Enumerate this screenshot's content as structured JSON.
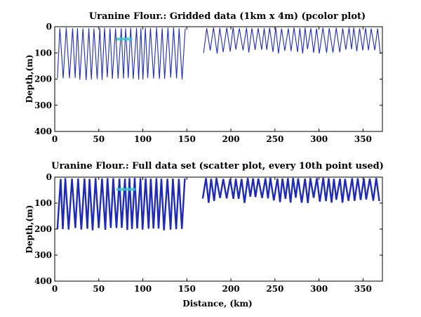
{
  "chart_data": [
    {
      "type": "pcolor",
      "title": "Uranine Flour.: Gridded data (1km x 4m) (pcolor plot)",
      "xlabel": "",
      "ylabel": "Depth,(m)",
      "xlim": [
        0,
        372
      ],
      "ylim": [
        0,
        400
      ],
      "y_reversed": true,
      "grid": false,
      "xticks": [
        "0",
        "50",
        "100",
        "150",
        "200",
        "250",
        "300",
        "350"
      ],
      "yticks": [
        "0",
        "100",
        "200",
        "300",
        "400"
      ],
      "profile_color": "#1f2bb5",
      "highlight_color": "#36c7c7",
      "profile_segments": [
        {
          "x_start": 3,
          "x_end": 149,
          "max_depth": 205
        },
        {
          "x_start": 169,
          "x_end": 370,
          "max_depth": 105
        }
      ],
      "highlights": [
        {
          "x_start": 70,
          "x_end": 88,
          "depth": 47
        }
      ]
    },
    {
      "type": "scatter",
      "title": "Uranine Flour.: Full data set (scatter plot, every 10th point used)",
      "xlabel": "Distance, (km)",
      "ylabel": "Depth,(m)",
      "xlim": [
        0,
        372
      ],
      "ylim": [
        0,
        400
      ],
      "y_reversed": true,
      "grid": false,
      "xticks": [
        "0",
        "50",
        "100",
        "150",
        "200",
        "250",
        "300",
        "350"
      ],
      "yticks": [
        "0",
        "100",
        "200",
        "300",
        "400"
      ],
      "profile_color": "#1f2bb5",
      "highlight_color": "#36c7c7",
      "profile_segments": [
        {
          "x_start": 3,
          "x_end": 149,
          "max_depth": 205
        },
        {
          "x_start": 168,
          "x_end": 370,
          "max_depth": 100
        }
      ],
      "highlights": [
        {
          "x_start": 70,
          "x_end": 92,
          "depth": 47
        }
      ]
    }
  ]
}
